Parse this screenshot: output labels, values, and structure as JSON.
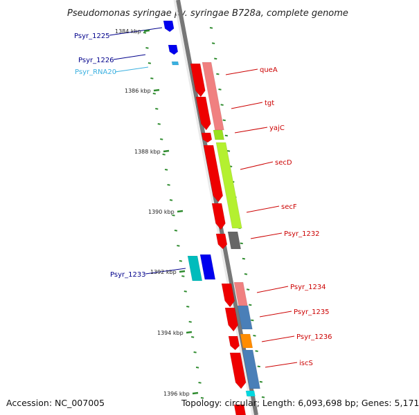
{
  "title": "Pseudomonas syringae pv. syringae B728a, complete genome",
  "footer": {
    "accession": "Accession: NC_007005",
    "topology": "Topology: circular; Length: 6,093,698 bp; Genes: 5,171"
  },
  "colors": {
    "backbone": "#808080",
    "tick": "#2e8b2e",
    "red_label": "#cc0000",
    "blue_label": "#00008b",
    "rna_label": "#3ab0e0"
  },
  "scale_labels": [
    "1384 kbp",
    "1386 kbp",
    "1388 kbp",
    "1390 kbp",
    "1392 kbp",
    "1394 kbp",
    "1396 kbp"
  ],
  "left_genes": [
    "Psyr_1225",
    "Psyr_1226",
    "Psyr_RNA20",
    "Psyr_1233"
  ],
  "right_genes": [
    "queA",
    "tgt",
    "yajC",
    "secD",
    "secF",
    "Psyr_1232",
    "Psyr_1234",
    "Psyr_1235",
    "Psyr_1236",
    "iscS"
  ]
}
